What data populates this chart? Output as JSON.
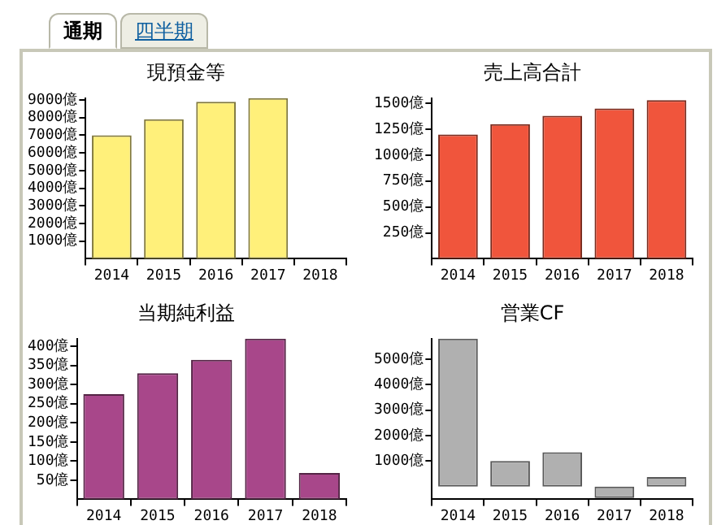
{
  "chart_data": [
    {
      "type": "other",
      "annotations": [
        "通期",
        "四半期"
      ]
    },
    {
      "type": "bar",
      "title": "現預金等",
      "categories": [
        "2014",
        "2015",
        "2016",
        "2017",
        "2018"
      ],
      "values": [
        7000,
        7900,
        8900,
        9100,
        null
      ],
      "color": "#fff07a",
      "ylim": [
        0,
        9100
      ],
      "yticks": [
        {
          "value": 1000,
          "label": "1000億"
        },
        {
          "value": 2000,
          "label": "2000億"
        },
        {
          "value": 3000,
          "label": "3000億"
        },
        {
          "value": 4000,
          "label": "4000億"
        },
        {
          "value": 5000,
          "label": "5000億"
        },
        {
          "value": 6000,
          "label": "6000億"
        },
        {
          "value": 7000,
          "label": "7000億"
        },
        {
          "value": 8000,
          "label": "8000億"
        },
        {
          "value": 9000,
          "label": "9000億"
        }
      ],
      "grid": false,
      "legend": false
    },
    {
      "type": "bar",
      "title": "売上高合計",
      "categories": [
        "2014",
        "2015",
        "2016",
        "2017",
        "2018"
      ],
      "values": [
        1200,
        1300,
        1380,
        1450,
        1530
      ],
      "color": "#f0553c",
      "ylim": [
        0,
        1550
      ],
      "yticks": [
        {
          "value": 250,
          "label": "250億"
        },
        {
          "value": 500,
          "label": "500億"
        },
        {
          "value": 750,
          "label": "750億"
        },
        {
          "value": 1000,
          "label": "1000億"
        },
        {
          "value": 1250,
          "label": "1250億"
        },
        {
          "value": 1500,
          "label": "1500億"
        }
      ],
      "grid": false,
      "legend": false
    },
    {
      "type": "bar",
      "title": "当期純利益",
      "categories": [
        "2014",
        "2015",
        "2016",
        "2017",
        "2018"
      ],
      "values": [
        275,
        330,
        365,
        420,
        69
      ],
      "color": "#a8478a",
      "ylim": [
        0,
        420
      ],
      "yticks": [
        {
          "value": 50,
          "label": "50億"
        },
        {
          "value": 100,
          "label": "100億"
        },
        {
          "value": 150,
          "label": "150億"
        },
        {
          "value": 200,
          "label": "200億"
        },
        {
          "value": 250,
          "label": "250億"
        },
        {
          "value": 300,
          "label": "300億"
        },
        {
          "value": 350,
          "label": "350億"
        },
        {
          "value": 400,
          "label": "400億"
        }
      ],
      "grid": false,
      "legend": false
    },
    {
      "type": "bar",
      "title": "営業CF",
      "categories": [
        "2014",
        "2015",
        "2016",
        "2017",
        "2018"
      ],
      "values": [
        5800,
        1000,
        1350,
        -450,
        370
      ],
      "color": "#b0b0b0",
      "ylim": [
        -500,
        5800
      ],
      "yticks": [
        {
          "value": 1000,
          "label": "1000億"
        },
        {
          "value": 2000,
          "label": "2000億"
        },
        {
          "value": 3000,
          "label": "3000億"
        },
        {
          "value": 4000,
          "label": "4000億"
        },
        {
          "value": 5000,
          "label": "5000億"
        }
      ],
      "grid": false,
      "legend": false
    }
  ]
}
